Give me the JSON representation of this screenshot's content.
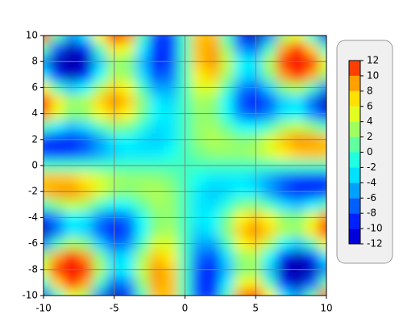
{
  "chart_data": {
    "type": "contour",
    "x": [
      -10,
      -9,
      -8,
      -7,
      -6,
      -5,
      -4,
      -3,
      -2,
      -1,
      0,
      1,
      2,
      3,
      4,
      5,
      6,
      7,
      8,
      9,
      10
    ],
    "y": [
      -10,
      -9,
      -8,
      -7,
      -6,
      -5,
      -4,
      -3,
      -2,
      -1,
      0,
      1,
      2,
      3,
      4,
      5,
      6,
      7,
      8,
      9,
      10
    ],
    "z": [
      [
        -10.9,
        -0.8,
        5.5,
        2.8,
        -6.1,
        -12.3,
        -9.8,
        -0.2,
        8,
        7.9,
        0,
        -7.9,
        -8,
        0.2,
        9.8,
        12.3,
        6.1,
        -2.8,
        -5.5,
        0.8,
        10.9
      ],
      [
        -0.8,
        7.4,
        12.2,
        8.8,
        0,
        -6.6,
        -5.2,
        2.5,
        9,
        8,
        0,
        -8,
        -9,
        -2.5,
        5.2,
        6.6,
        0,
        -8.8,
        -12.2,
        -7.4,
        0.8
      ],
      [
        5.5,
        12.2,
        15.8,
        12.2,
        3.7,
        -2.7,
        -2.1,
        4.1,
        9.3,
        7.7,
        0,
        -7.7,
        -9.3,
        -4.1,
        2.1,
        2.7,
        -3.7,
        -12.2,
        -15.8,
        -12.2,
        -5.5
      ],
      [
        2.8,
        8.8,
        12.2,
        9.2,
        2,
        -3.4,
        -2.7,
        3,
        7.7,
        6.5,
        0,
        -6.5,
        -7.7,
        -3,
        2.7,
        3.4,
        -2,
        -9.2,
        -12.2,
        -8.8,
        -2.8
      ],
      [
        -6.1,
        0,
        3.7,
        2,
        -3.4,
        -7.2,
        -5.7,
        0,
        4.9,
        4.8,
        0,
        -4.8,
        -4.9,
        0,
        5.7,
        7.2,
        3.4,
        -2,
        -3.7,
        0,
        6.1
      ],
      [
        -12.3,
        -6.6,
        -2.7,
        -3.4,
        -7.2,
        -9.6,
        -7.6,
        -2.2,
        2.6,
        3.3,
        0,
        -3.3,
        -2.6,
        2.2,
        7.6,
        9.6,
        7.2,
        3.4,
        2.7,
        6.6,
        12.3
      ],
      [
        -9.8,
        -5.2,
        -2.1,
        -2.7,
        -5.7,
        -7.6,
        -6.1,
        -1.7,
        2.1,
        2.6,
        0,
        -2.6,
        -2.1,
        1.7,
        6.1,
        7.6,
        5.7,
        2.7,
        2.1,
        5.2,
        9.8
      ],
      [
        -0.2,
        2.5,
        4.1,
        3,
        0,
        -2.2,
        -1.7,
        0.9,
        3,
        2.7,
        0,
        -2.7,
        -3,
        -0.9,
        1.7,
        2.2,
        0,
        -3,
        -4.1,
        -2.5,
        0.2
      ],
      [
        8,
        9,
        9.3,
        7.7,
        4.9,
        2.6,
        2.1,
        3,
        3.6,
        2.6,
        0,
        -2.6,
        -3.6,
        -3,
        -2.1,
        -2.6,
        -4.9,
        -7.7,
        -9.3,
        -9,
        -8
      ],
      [
        7.9,
        8,
        7.7,
        6.5,
        4.8,
        3.3,
        2.6,
        2.7,
        2.6,
        1.7,
        0,
        -1.7,
        -2.6,
        -2.7,
        -2.6,
        -3.3,
        -4.8,
        -6.5,
        -7.7,
        -8,
        -7.9
      ],
      [
        0,
        0,
        0,
        0,
        0,
        0,
        0,
        0,
        0,
        0,
        0,
        0,
        0,
        0,
        0,
        0,
        0,
        0,
        0,
        0,
        0
      ],
      [
        -7.9,
        -8,
        -7.7,
        -6.5,
        -4.8,
        -3.3,
        -2.6,
        -2.7,
        -2.6,
        -1.7,
        0,
        1.7,
        2.6,
        2.7,
        2.6,
        3.3,
        4.8,
        6.5,
        7.7,
        8,
        7.9
      ],
      [
        -8,
        -9,
        -9.3,
        -7.7,
        -4.9,
        -2.6,
        -2.1,
        -3,
        -3.6,
        -2.6,
        0,
        2.6,
        3.6,
        3,
        2.1,
        2.6,
        4.9,
        7.7,
        9.3,
        9,
        8
      ],
      [
        0.2,
        -2.5,
        -4.1,
        -3,
        0,
        2.2,
        1.7,
        -0.9,
        -3,
        -2.7,
        0,
        2.7,
        3,
        0.9,
        -1.7,
        -2.2,
        0,
        3,
        4.1,
        2.5,
        -0.2
      ],
      [
        9.8,
        5.2,
        2.1,
        2.7,
        5.7,
        7.6,
        6.1,
        1.7,
        -2.1,
        -2.6,
        0,
        2.6,
        2.1,
        -1.7,
        -6.1,
        -7.6,
        -5.7,
        -2.7,
        -2.1,
        -5.2,
        -9.8
      ],
      [
        12.3,
        6.6,
        2.7,
        3.4,
        7.2,
        9.6,
        7.6,
        2.2,
        -2.6,
        -3.3,
        0,
        3.3,
        2.6,
        -2.2,
        -7.6,
        -9.6,
        -7.2,
        -3.4,
        -2.7,
        -6.6,
        -12.3
      ],
      [
        6.1,
        0,
        -3.7,
        -2,
        3.4,
        7.2,
        5.7,
        0,
        -4.9,
        -4.8,
        0,
        4.8,
        4.9,
        0,
        -5.7,
        -7.2,
        -3.4,
        2,
        3.7,
        0,
        -6.1
      ],
      [
        -2.8,
        -8.8,
        -12.2,
        -9.2,
        -2,
        3.4,
        2.7,
        -3,
        -7.7,
        -6.5,
        0,
        6.5,
        7.7,
        3,
        -2.7,
        -3.4,
        2,
        9.2,
        12.2,
        8.8,
        2.8
      ],
      [
        -5.5,
        -12.2,
        -15.8,
        -12.2,
        -3.7,
        2.7,
        2.1,
        -4.1,
        -9.3,
        -7.7,
        0,
        7.7,
        9.3,
        4.1,
        -2.1,
        -2.7,
        3.7,
        12.2,
        15.8,
        12.2,
        5.5
      ],
      [
        0.8,
        -7.4,
        -12.2,
        -8.8,
        0,
        6.6,
        5.2,
        -2.5,
        -9,
        -8,
        0,
        8,
        9,
        2.5,
        -5.2,
        -6.6,
        0,
        8.8,
        12.2,
        7.4,
        -0.8
      ],
      [
        10.9,
        0.8,
        -5.5,
        -2.8,
        6.1,
        12.3,
        9.8,
        0.2,
        -8,
        -7.9,
        0,
        7.9,
        8,
        -0.2,
        -9.8,
        -12.3,
        -6.1,
        2.8,
        5.5,
        -0.8,
        -10.9
      ]
    ],
    "xlim": [
      -10,
      10
    ],
    "ylim": [
      -10,
      10
    ],
    "xticks": [
      -10,
      -5,
      0,
      5,
      10
    ],
    "yticks": [
      -10,
      -8,
      -6,
      -4,
      -2,
      0,
      2,
      4,
      6,
      8,
      10
    ],
    "zlim": [
      -12,
      12
    ],
    "zticks": [
      -12,
      -10,
      -8,
      -6,
      -4,
      -2,
      0,
      2,
      4,
      6,
      8,
      10,
      12
    ],
    "colors": [
      "#0000b4",
      "#0000ff",
      "#0040ff",
      "#0080ff",
      "#00c0ff",
      "#00ffff",
      "#40ffc0",
      "#80ff80",
      "#c0ff40",
      "#ffff00",
      "#ffc000",
      "#ff8000",
      "#ff0000"
    ],
    "grid": true
  }
}
